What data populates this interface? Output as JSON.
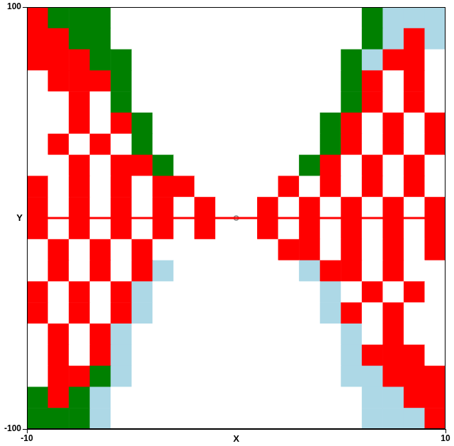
{
  "chart_data": {
    "type": "heatmap",
    "x_label": "X",
    "y_label": "Y",
    "xlim": [
      -10,
      10
    ],
    "ylim": [
      -100,
      100
    ],
    "xticks": [
      -10,
      10
    ],
    "yticks": [
      -100,
      100
    ],
    "grid": false,
    "x_edges": [
      -10,
      -9,
      -8,
      -7,
      -6,
      -5,
      -4,
      -3,
      -2,
      -1,
      0,
      1,
      2,
      3,
      4,
      5,
      6,
      7,
      8,
      9,
      10
    ],
    "y_edges": [
      100,
      90,
      80,
      70,
      60,
      50,
      40,
      30,
      20,
      10,
      0,
      -10,
      -20,
      -30,
      -40,
      -50,
      -60,
      -70,
      -80,
      -90,
      -100
    ],
    "colors": [
      "#ffffff",
      "#ff0000",
      "#008000",
      "#add8e6"
    ],
    "cells": [
      [
        1,
        2,
        2,
        2,
        0,
        0,
        0,
        0,
        0,
        0,
        0,
        0,
        0,
        0,
        0,
        0,
        2,
        3,
        3,
        3
      ],
      [
        1,
        1,
        2,
        2,
        0,
        0,
        0,
        0,
        0,
        0,
        0,
        0,
        0,
        0,
        0,
        0,
        2,
        3,
        1,
        3
      ],
      [
        1,
        1,
        1,
        2,
        2,
        0,
        0,
        0,
        0,
        0,
        0,
        0,
        0,
        0,
        0,
        2,
        3,
        1,
        1,
        0
      ],
      [
        0,
        1,
        1,
        1,
        2,
        0,
        0,
        0,
        0,
        0,
        0,
        0,
        0,
        0,
        0,
        2,
        1,
        0,
        1,
        0
      ],
      [
        0,
        0,
        1,
        0,
        2,
        0,
        0,
        0,
        0,
        0,
        0,
        0,
        0,
        0,
        0,
        2,
        1,
        0,
        1,
        0
      ],
      [
        0,
        0,
        1,
        0,
        1,
        2,
        0,
        0,
        0,
        0,
        0,
        0,
        0,
        0,
        2,
        1,
        0,
        1,
        0,
        1
      ],
      [
        0,
        1,
        0,
        1,
        0,
        2,
        0,
        0,
        0,
        0,
        0,
        0,
        0,
        0,
        2,
        1,
        0,
        1,
        0,
        1
      ],
      [
        0,
        0,
        1,
        0,
        1,
        1,
        2,
        0,
        0,
        0,
        0,
        0,
        0,
        2,
        1,
        0,
        1,
        0,
        1,
        0
      ],
      [
        1,
        0,
        1,
        0,
        1,
        0,
        1,
        1,
        0,
        0,
        0,
        0,
        1,
        0,
        1,
        0,
        1,
        0,
        1,
        0
      ],
      [
        1,
        0,
        1,
        0,
        1,
        0,
        1,
        0,
        1,
        0,
        0,
        1,
        0,
        1,
        0,
        1,
        0,
        1,
        0,
        1
      ],
      [
        1,
        0,
        1,
        0,
        1,
        0,
        1,
        0,
        1,
        0,
        0,
        1,
        0,
        1,
        0,
        1,
        0,
        1,
        0,
        1
      ],
      [
        0,
        1,
        0,
        1,
        0,
        1,
        0,
        0,
        0,
        0,
        0,
        0,
        1,
        1,
        0,
        1,
        0,
        1,
        0,
        1
      ],
      [
        0,
        1,
        0,
        1,
        0,
        1,
        3,
        0,
        0,
        0,
        0,
        0,
        0,
        3,
        1,
        1,
        0,
        1,
        0,
        0
      ],
      [
        1,
        0,
        1,
        0,
        1,
        3,
        0,
        0,
        0,
        0,
        0,
        0,
        0,
        0,
        3,
        0,
        1,
        0,
        1,
        0
      ],
      [
        1,
        0,
        1,
        0,
        1,
        3,
        0,
        0,
        0,
        0,
        0,
        0,
        0,
        0,
        3,
        1,
        0,
        1,
        0,
        0
      ],
      [
        0,
        1,
        0,
        1,
        3,
        0,
        0,
        0,
        0,
        0,
        0,
        0,
        0,
        0,
        0,
        3,
        0,
        1,
        0,
        0
      ],
      [
        0,
        1,
        0,
        1,
        3,
        0,
        0,
        0,
        0,
        0,
        0,
        0,
        0,
        0,
        0,
        3,
        1,
        1,
        1,
        0
      ],
      [
        0,
        1,
        1,
        2,
        3,
        0,
        0,
        0,
        0,
        0,
        0,
        0,
        0,
        0,
        0,
        3,
        3,
        1,
        1,
        1
      ],
      [
        2,
        1,
        2,
        3,
        0,
        0,
        0,
        0,
        0,
        0,
        0,
        0,
        0,
        0,
        0,
        0,
        3,
        3,
        1,
        1
      ],
      [
        2,
        2,
        2,
        3,
        0,
        0,
        0,
        0,
        0,
        0,
        0,
        0,
        0,
        0,
        0,
        0,
        3,
        3,
        3,
        1
      ]
    ],
    "series": [
      {
        "type": "line",
        "color": "#ff0000",
        "line_style": "solid",
        "x": [
          -10,
          10
        ],
        "values": [
          0,
          0
        ]
      },
      {
        "type": "scatter",
        "color": "#808080",
        "marker": "circle",
        "x": [
          0
        ],
        "values": [
          0
        ]
      }
    ]
  }
}
